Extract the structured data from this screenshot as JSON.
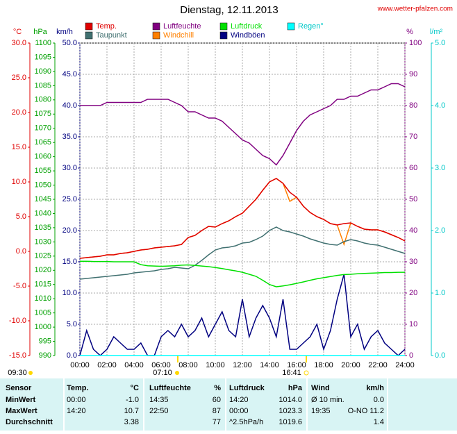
{
  "chart_data": {
    "type": "line",
    "title": "Dienstag, 12.11.2013",
    "source": "www.wetter-pfalzen.com",
    "x": [
      0,
      0.5,
      1,
      1.5,
      2,
      2.5,
      3,
      3.5,
      4,
      4.5,
      5,
      5.5,
      6,
      6.5,
      7,
      7.5,
      8,
      8.5,
      9,
      9.5,
      10,
      10.5,
      11,
      11.5,
      12,
      12.5,
      13,
      13.5,
      14,
      14.5,
      15,
      15.5,
      16,
      16.5,
      17,
      17.5,
      18,
      18.5,
      19,
      19.5,
      20,
      20.5,
      21,
      21.5,
      22,
      22.5,
      23,
      23.5,
      24
    ],
    "xlim": [
      0,
      24
    ],
    "xticks": [
      {
        "value": 0,
        "label": "00:00"
      },
      {
        "value": 2,
        "label": "02:00"
      },
      {
        "value": 4,
        "label": "04:00"
      },
      {
        "value": 6,
        "label": "06:00"
      },
      {
        "value": 8,
        "label": "08:00"
      },
      {
        "value": 10,
        "label": "10:00"
      },
      {
        "value": 12,
        "label": "12:00"
      },
      {
        "value": 14,
        "label": "14:00"
      },
      {
        "value": 16,
        "label": "16:00"
      },
      {
        "value": 18,
        "label": "18:00"
      },
      {
        "value": 20,
        "label": "20:00"
      },
      {
        "value": 22,
        "label": "22:00"
      },
      {
        "value": 24,
        "label": "24:00"
      }
    ],
    "grid": true,
    "y_axes": {
      "y": {
        "title": "°C",
        "color": "#e00000",
        "lim": [
          -15,
          30
        ],
        "ticks": [
          {
            "value": -15,
            "label": "-15.0"
          },
          {
            "value": -10,
            "label": "-10.0"
          },
          {
            "value": -5,
            "label": "-5.0"
          },
          {
            "value": 0,
            "label": "0.0"
          },
          {
            "value": 5,
            "label": "5.0"
          },
          {
            "value": 10,
            "label": "10.0"
          },
          {
            "value": 15,
            "label": "15.0"
          },
          {
            "value": 20,
            "label": "20.0"
          },
          {
            "value": 25,
            "label": "25.0"
          },
          {
            "value": 30,
            "label": "30.0"
          }
        ]
      },
      "y3": {
        "title": "hPa",
        "color": "#00a000",
        "lim": [
          990,
          1100
        ],
        "ticks": [
          990,
          995,
          1000,
          1005,
          1010,
          1015,
          1020,
          1025,
          1030,
          1035,
          1040,
          1045,
          1050,
          1055,
          1060,
          1065,
          1070,
          1075,
          1080,
          1085,
          1090,
          1095,
          1100
        ]
      },
      "y4": {
        "title": "km/h",
        "color": "#000080",
        "lim": [
          0,
          50
        ],
        "ticks": [
          {
            "value": 0,
            "label": "0.0"
          },
          {
            "value": 5,
            "label": "5.0"
          },
          {
            "value": 10,
            "label": "10.0"
          },
          {
            "value": 15,
            "label": "15.0"
          },
          {
            "value": 20,
            "label": "20.0"
          },
          {
            "value": 25,
            "label": "25.0"
          },
          {
            "value": 30,
            "label": "30.0"
          },
          {
            "value": 35,
            "label": "35.0"
          },
          {
            "value": 40,
            "label": "40.0"
          },
          {
            "value": 45,
            "label": "45.0"
          },
          {
            "value": 50,
            "label": "50.0"
          }
        ]
      },
      "y2": {
        "title": "%",
        "color": "#800080",
        "lim": [
          0,
          100
        ],
        "ticks": [
          0,
          10,
          20,
          30,
          40,
          50,
          60,
          70,
          80,
          90,
          100
        ]
      },
      "y5": {
        "title": "l/m²",
        "color": "#00c8c8",
        "lim": [
          0,
          5
        ],
        "ticks": [
          {
            "value": 0,
            "label": "0.0"
          },
          {
            "value": 1,
            "label": "1.0"
          },
          {
            "value": 2,
            "label": "2.0"
          },
          {
            "value": 3,
            "label": "3.0"
          },
          {
            "value": 4,
            "label": "4.0"
          },
          {
            "value": 5,
            "label": "5.0"
          }
        ]
      }
    },
    "series": [
      {
        "name": "Temp.",
        "color": "#e00000",
        "axis": "y",
        "values": [
          -1.0,
          -0.9,
          -0.8,
          -0.7,
          -0.5,
          -0.5,
          -0.3,
          -0.2,
          0.0,
          0.2,
          0.3,
          0.5,
          0.6,
          0.7,
          0.8,
          1.0,
          2.0,
          2.3,
          3.0,
          3.6,
          3.5,
          4.0,
          4.4,
          5.0,
          5.5,
          6.5,
          7.5,
          8.8,
          10.0,
          10.5,
          9.8,
          8.5,
          7.8,
          6.5,
          5.6,
          5.0,
          4.6,
          4.0,
          3.8,
          4.0,
          4.1,
          3.6,
          3.2,
          3.1,
          3.1,
          2.8,
          2.4,
          2.0,
          1.5
        ]
      },
      {
        "name": "Luftfeuchte",
        "color": "#800080",
        "axis": "y2",
        "values": [
          80,
          80,
          80,
          80,
          81,
          81,
          81,
          81,
          81,
          81,
          82,
          82,
          82,
          82,
          81,
          80,
          78,
          78,
          77,
          76,
          76,
          75,
          73,
          71,
          69,
          68,
          66,
          64,
          63,
          61,
          64,
          68,
          72,
          75,
          77,
          78,
          79,
          80,
          82,
          82,
          83,
          83,
          84,
          85,
          85,
          86,
          87,
          87,
          86
        ]
      },
      {
        "name": "Luftdruck",
        "color": "#00e000",
        "axis": "y3",
        "values": [
          1023.2,
          1023.2,
          1023.1,
          1023.1,
          1023.1,
          1023.0,
          1023.0,
          1023.0,
          1023.0,
          1022.0,
          1021.6,
          1021.5,
          1021.4,
          1021.5,
          1021.6,
          1021.8,
          1021.9,
          1021.7,
          1021.5,
          1021.3,
          1021.0,
          1020.6,
          1020.2,
          1019.8,
          1019.3,
          1018.6,
          1017.9,
          1016.5,
          1015.0,
          1014.2,
          1014.5,
          1014.9,
          1015.4,
          1015.9,
          1016.5,
          1017.0,
          1017.4,
          1017.8,
          1018.2,
          1018.5,
          1018.6,
          1018.8,
          1018.9,
          1019.0,
          1019.1,
          1019.2,
          1019.2,
          1019.3,
          1019.3
        ]
      },
      {
        "name": "Regen°",
        "color": "#00ffff",
        "axis": "y5",
        "x": [
          0,
          24
        ],
        "values": [
          0,
          0
        ]
      },
      {
        "name": "Taupunkt",
        "color": "#407070",
        "axis": "y",
        "values": [
          -4.0,
          -3.9,
          -3.8,
          -3.7,
          -3.6,
          -3.5,
          -3.4,
          -3.3,
          -3.1,
          -3.0,
          -2.9,
          -2.8,
          -2.6,
          -2.5,
          -2.3,
          -2.4,
          -2.5,
          -2.0,
          -1.3,
          -0.5,
          0.2,
          0.5,
          0.6,
          0.8,
          1.2,
          1.3,
          1.7,
          2.2,
          3.0,
          3.5,
          3.0,
          2.8,
          2.5,
          2.2,
          1.8,
          1.5,
          1.2,
          1.0,
          0.9,
          1.4,
          1.7,
          1.5,
          1.2,
          1.0,
          0.9,
          0.6,
          0.3,
          0.0,
          -0.3
        ]
      },
      {
        "name": "Windchill",
        "color": "#ff8000",
        "axis": "y",
        "values": [
          -1.0,
          -0.9,
          -0.8,
          -0.7,
          -0.5,
          -0.5,
          -0.3,
          -0.2,
          0.0,
          0.2,
          0.3,
          0.5,
          0.6,
          0.7,
          0.8,
          1.0,
          2.0,
          2.3,
          3.0,
          3.6,
          3.5,
          4.0,
          4.4,
          5.0,
          5.5,
          6.5,
          7.5,
          8.8,
          10.0,
          10.5,
          9.8,
          7.2,
          7.8,
          6.5,
          5.6,
          5.0,
          4.6,
          4.0,
          3.8,
          1.0,
          4.1,
          3.6,
          3.2,
          3.1,
          3.1,
          2.8,
          2.4,
          2.0,
          1.5
        ]
      },
      {
        "name": "Windböen",
        "color": "#000080",
        "axis": "y4",
        "values": [
          0,
          4,
          1,
          0,
          1,
          3,
          2,
          1,
          1,
          2,
          0,
          0,
          3,
          4,
          3,
          5,
          3,
          4,
          6,
          3,
          5,
          7,
          4,
          3,
          9,
          3,
          6,
          8,
          6,
          3,
          9,
          1,
          1,
          2,
          3,
          5,
          1,
          4,
          9,
          13,
          3,
          5,
          1,
          3,
          4,
          2,
          1,
          0,
          1
        ]
      }
    ],
    "annotations": {
      "start": "09:30",
      "sunrise": "07:10",
      "sunset": "16:41"
    }
  },
  "table": {
    "header": [
      "Sensor",
      "Temp.",
      "°C",
      "Luftfeuchte",
      "%",
      "Luftdruck",
      "hPa",
      "Wind",
      "km/h"
    ],
    "rows": [
      [
        "MinWert",
        "00:00",
        "-1.0",
        "14:35",
        "60",
        "14:20",
        "1014.0",
        "Ø 10 min.",
        "0.0"
      ],
      [
        "MaxWert",
        "14:20",
        "10.7",
        "22:50",
        "87",
        "00:00",
        "1023.3",
        "19:35",
        "O-NO 11.2"
      ],
      [
        "Durchschnitt",
        null,
        "3.38",
        null,
        "77",
        "^2.5hPa/h",
        "1019.6",
        null,
        "1.4"
      ]
    ]
  }
}
